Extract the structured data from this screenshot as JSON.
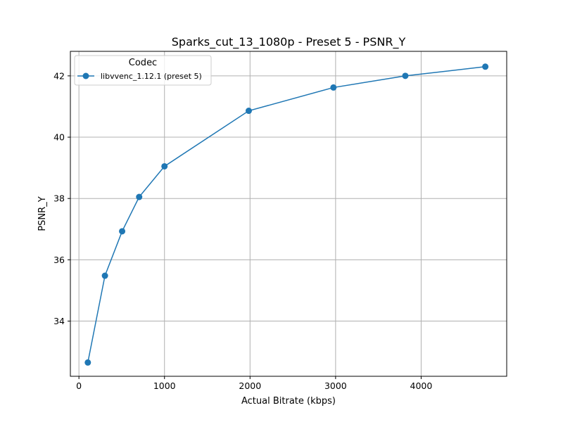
{
  "chart_data": {
    "type": "line",
    "title": "Sparks_cut_13_1080p - Preset 5 - PSNR_Y",
    "xlabel": "Actual Bitrate (kbps)",
    "ylabel": "PSNR_Y",
    "xlim": [
      -100,
      5000
    ],
    "ylim": [
      32.2,
      42.8
    ],
    "xticks": [
      0,
      1000,
      2000,
      3000,
      4000
    ],
    "yticks": [
      34,
      36,
      38,
      40,
      42
    ],
    "grid": true,
    "legend": {
      "title": "Codec",
      "placement": "top-left"
    },
    "series": [
      {
        "name": "libvvenc_1.12.1 (preset 5)",
        "color": "#1f77b4",
        "marker": "circle",
        "x": [
          104,
          304,
          505,
          704,
          1000,
          1985,
          2975,
          3815,
          4750
        ],
        "y": [
          32.65,
          35.48,
          36.93,
          38.05,
          39.05,
          40.86,
          41.62,
          42.0,
          42.3
        ]
      }
    ]
  }
}
